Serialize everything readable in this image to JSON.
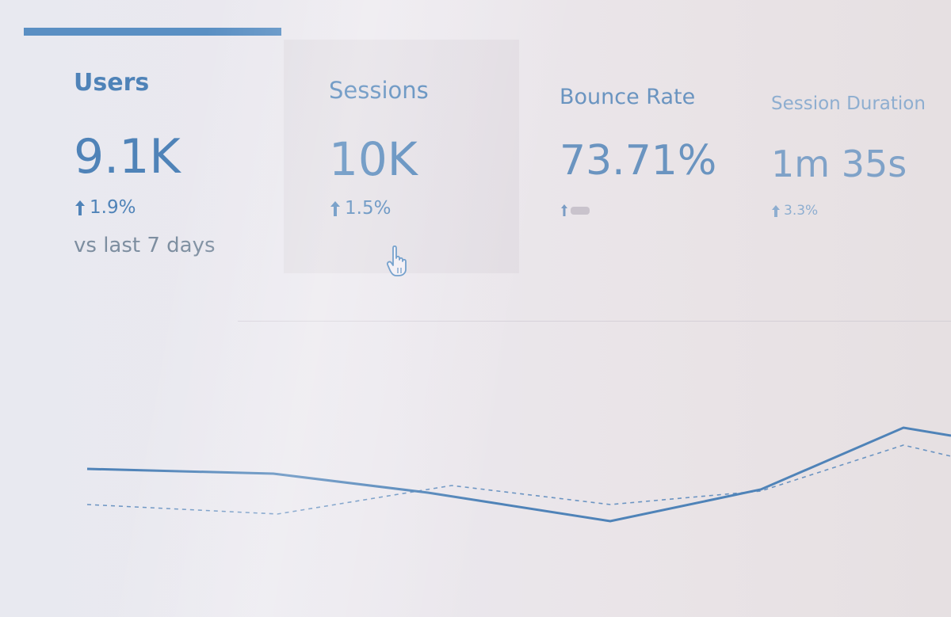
{
  "tabs": [
    {
      "label": "Users",
      "value": "9.1K",
      "change": "1.9%"
    },
    {
      "label": "Sessions",
      "value": "10K",
      "change": "1.5%"
    },
    {
      "label": "Bounce Rate",
      "value": "73.71%"
    },
    {
      "label": "Session Duration",
      "value": "1m 35s",
      "change": "3.3%"
    }
  ],
  "comparison": "vs last 7 days"
}
